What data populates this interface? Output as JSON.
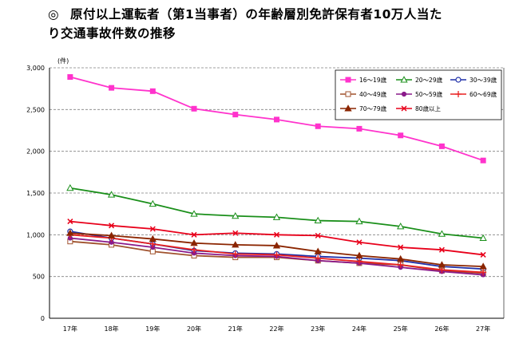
{
  "title": {
    "mark": "◎",
    "line1": "原付以上運転者（第1当事者）の年齢層別免許保有者10万人当た",
    "line2": "り交通事故件数の推移"
  },
  "chart_data": {
    "type": "line",
    "unit_label": "(件)",
    "x_categories": [
      "17年",
      "18年",
      "19年",
      "20年",
      "21年",
      "22年",
      "23年",
      "24年",
      "25年",
      "26年",
      "27年"
    ],
    "ylim": [
      0,
      3000
    ],
    "y_ticks": [
      0,
      500,
      1000,
      1500,
      2000,
      2500,
      3000
    ],
    "y_tick_labels": [
      "0",
      "500",
      "1,000",
      "1,500",
      "2,000",
      "2,500",
      "3,000"
    ],
    "grid": "dashed-horizontal",
    "legend_position": "top-right",
    "series": [
      {
        "name": "16～19歳",
        "color": "#ff33cc",
        "marker": "square-filled",
        "values": [
          2890,
          2760,
          2720,
          2510,
          2440,
          2380,
          2300,
          2270,
          2190,
          2060,
          1890
        ]
      },
      {
        "name": "20～29歳",
        "color": "#1a8f1a",
        "marker": "triangle-open",
        "values": [
          1560,
          1480,
          1370,
          1250,
          1225,
          1210,
          1170,
          1160,
          1100,
          1010,
          960
        ]
      },
      {
        "name": "30～39歳",
        "color": "#1f2fa8",
        "marker": "circle-open",
        "values": [
          1040,
          960,
          890,
          810,
          780,
          770,
          740,
          720,
          690,
          620,
          590
        ]
      },
      {
        "name": "40～49歳",
        "color": "#a0522d",
        "marker": "square-open",
        "values": [
          920,
          880,
          800,
          750,
          730,
          730,
          690,
          660,
          640,
          570,
          540
        ]
      },
      {
        "name": "50～59歳",
        "color": "#8a1a8a",
        "marker": "circle-filled",
        "values": [
          960,
          910,
          850,
          780,
          750,
          740,
          690,
          660,
          610,
          560,
          520
        ]
      },
      {
        "name": "60～69歳",
        "color": "#e82020",
        "marker": "plus",
        "values": [
          1000,
          960,
          890,
          820,
          770,
          760,
          720,
          680,
          640,
          580,
          550
        ]
      },
      {
        "name": "70～79歳",
        "color": "#8b2500",
        "marker": "triangle-filled",
        "values": [
          1020,
          990,
          950,
          900,
          880,
          870,
          800,
          750,
          710,
          640,
          620
        ]
      },
      {
        "name": "80歳以上",
        "color": "#e8001a",
        "marker": "x",
        "values": [
          1160,
          1110,
          1070,
          1000,
          1020,
          1000,
          990,
          910,
          850,
          820,
          760
        ]
      }
    ]
  }
}
